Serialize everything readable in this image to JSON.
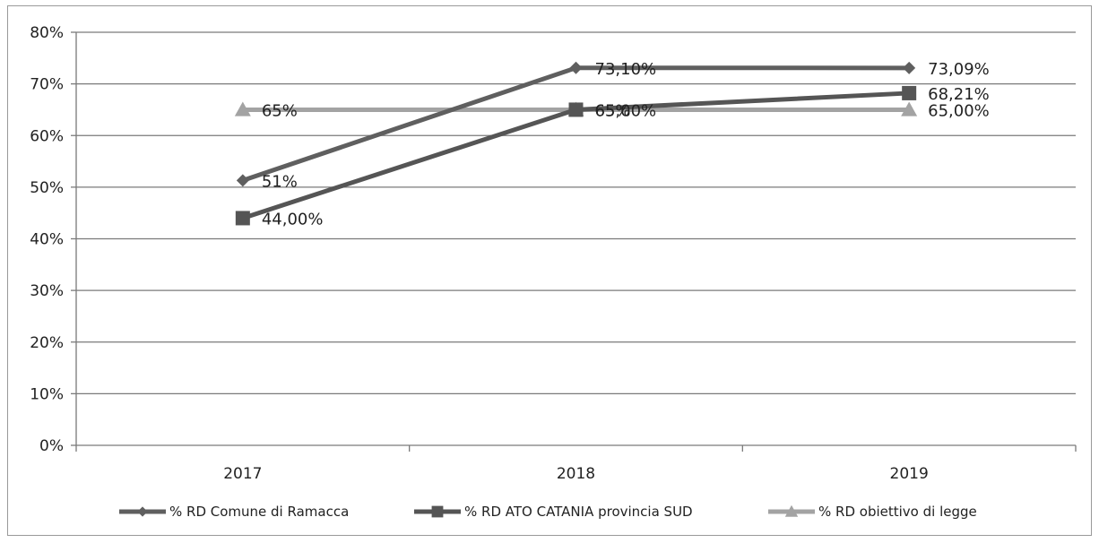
{
  "chart_data": {
    "type": "line",
    "title": "",
    "xlabel": "",
    "ylabel": "",
    "categories": [
      "2017",
      "2018",
      "2019"
    ],
    "ylim": [
      0,
      80
    ],
    "yticks": [
      "0%",
      "10%",
      "20%",
      "30%",
      "40%",
      "50%",
      "60%",
      "70%",
      "80%"
    ],
    "ytick_values": [
      0,
      10,
      20,
      30,
      40,
      50,
      60,
      70,
      80
    ],
    "grid": true,
    "legend_position": "bottom",
    "series": [
      {
        "name": "% RD Comune di Ramacca",
        "values": [
          51.3,
          73.1,
          73.09
        ],
        "labels": [
          "51%",
          "73,10%",
          "73,09%"
        ],
        "color": "#5f5f5f",
        "marker": "diamond"
      },
      {
        "name": "% RD ATO  CATANIA provincia SUD",
        "values": [
          44.0,
          65.0,
          68.21
        ],
        "labels": [
          "44,00%",
          "65,00%",
          "68,21%"
        ],
        "color": "#555555",
        "marker": "square"
      },
      {
        "name": "% RD obiettivo di legge",
        "values": [
          65.0,
          65.0,
          65.0
        ],
        "labels": [
          "65%",
          "65%",
          "65,00%"
        ],
        "color": "#a3a3a3",
        "marker": "triangle"
      }
    ]
  }
}
